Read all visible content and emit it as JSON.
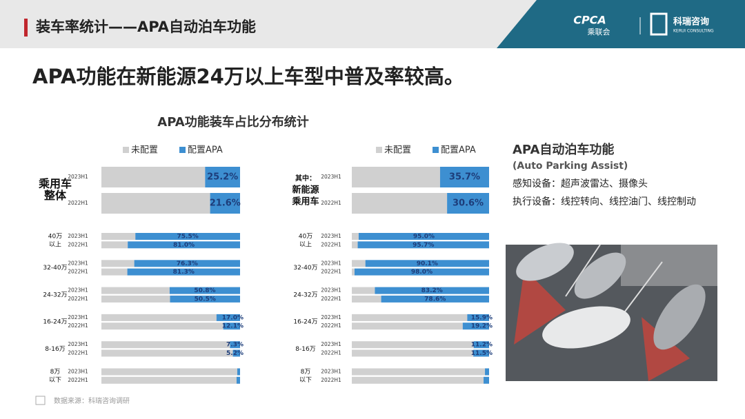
{
  "header": {
    "title": "装车率统计——APA自动泊车功能",
    "logo1": "CPCA",
    "logo1_sub": "乘联会",
    "logo2": "科瑞咨询",
    "logo2_sub": "KERUI CONSULTING"
  },
  "headline": "APA功能在新能源24万以上车型中普及率较高。",
  "chart_data": [
    {
      "type": "stacked-barh",
      "title": "APA功能装车占比分布统计",
      "groups": [
        [
          "乘用车",
          "整体"
        ],
        [
          "40万",
          "以上"
        ],
        [
          "32-40万"
        ],
        [
          "24-32万"
        ],
        [
          "16-24万"
        ],
        [
          "8-16万"
        ],
        [
          "8万",
          "以下"
        ]
      ],
      "categories": [
        "2023H1",
        "2022H1",
        "2023H1",
        "2022H1",
        "2023H1",
        "2022H1",
        "2023H1",
        "2022H1",
        "2023H1",
        "2022H1",
        "2023H1",
        "2022H1",
        "2023H1",
        "2022H1"
      ],
      "xlim": [
        0,
        100
      ],
      "series": [
        {
          "name": "未配置",
          "color": "#d0d0d0",
          "values": [
            74.8,
            78.4,
            24.5,
            19.0,
            23.7,
            18.7,
            49.2,
            49.5,
            83.0,
            87.9,
            92.7,
            94.8,
            98,
            97.5
          ]
        },
        {
          "name": "配置APA",
          "color": "#3d8fd1",
          "values": [
            25.2,
            21.6,
            75.5,
            81.0,
            76.3,
            81.3,
            50.8,
            50.5,
            17.0,
            12.1,
            7.3,
            5.2,
            2,
            2.5
          ],
          "value_labels": [
            "25.2%",
            "21.6%",
            "75.5%",
            "81.0%",
            "76.3%",
            "81.3%",
            "50.8%",
            "50.5%",
            "17.0%",
            "12.1%",
            "7.3%",
            "5.2%",
            null,
            null
          ]
        }
      ]
    },
    {
      "type": "stacked-barh",
      "groups": [
        [
          "其中：",
          "新能源",
          "乘用车"
        ],
        [
          "40万",
          "以上"
        ],
        [
          "32-40万"
        ],
        [
          "24-32万"
        ],
        [
          "16-24万"
        ],
        [
          "8-16万"
        ],
        [
          "8万",
          "以下"
        ]
      ],
      "categories": [
        "2023H1",
        "2022H1",
        "2023H1",
        "2022H1",
        "2023H1",
        "2022H1",
        "2023H1",
        "2022H1",
        "2023H1",
        "2022H1",
        "2023H1",
        "2022H1",
        "2023H1",
        "2022H1"
      ],
      "xlim": [
        0,
        100
      ],
      "series": [
        {
          "name": "未配置",
          "color": "#d0d0d0",
          "values": [
            64.3,
            69.4,
            5.0,
            4.3,
            9.9,
            2.0,
            16.8,
            21.4,
            84.1,
            80.8,
            88.8,
            88.5,
            97,
            96
          ]
        },
        {
          "name": "配置APA",
          "color": "#3d8fd1",
          "values": [
            35.7,
            30.6,
            95.0,
            95.7,
            90.1,
            98.0,
            83.2,
            78.6,
            15.9,
            19.2,
            11.2,
            11.5,
            3,
            4
          ],
          "value_labels": [
            "35.7%",
            "30.6%",
            "95.0%",
            "95.7%",
            "90.1%",
            "98.0%",
            "83.2%",
            "78.6%",
            "15.9%",
            "19.2%",
            "11.2%",
            "11.5%",
            null,
            null
          ]
        }
      ]
    }
  ],
  "side": {
    "title": "APA自动泊车功能",
    "subtitle": "(Auto Parking Assist)",
    "line1": "感知设备：超声波雷达、摄像头",
    "line2": "执行设备：线控转向、线控油门、线控制动"
  },
  "source": "数据来源：科瑞咨询调研"
}
